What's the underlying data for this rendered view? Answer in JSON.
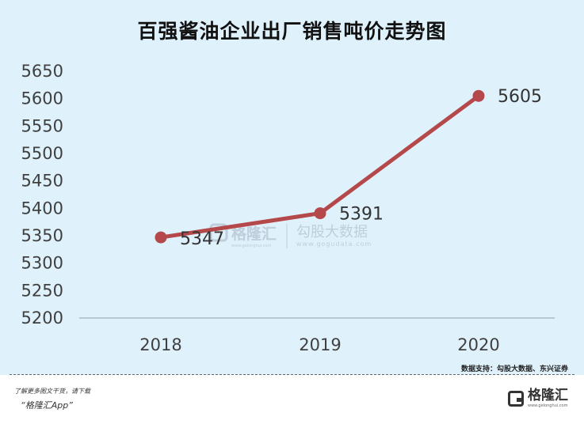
{
  "chart_data": {
    "type": "line",
    "title": "百强酱油企业出厂销售吨价走势图",
    "categories": [
      "2018",
      "2019",
      "2020"
    ],
    "series": [
      {
        "values": [
          5347,
          5391,
          5605
        ],
        "color": "#b5484a"
      }
    ],
    "data_labels": [
      "5347",
      "5391",
      "5605"
    ],
    "yticks": [
      "5650",
      "5600",
      "5550",
      "5500",
      "5450",
      "5400",
      "5350",
      "5300",
      "5250",
      "5200"
    ],
    "ylim": [
      5200,
      5650
    ],
    "grid": false,
    "legend": "none"
  },
  "watermark": {
    "brand": "格隆汇",
    "sub": "www.gelonghui.com",
    "name": "勾股大数据",
    "url": "www.gogudata.com"
  },
  "source_text": "数据支持：勾股大数据、东兴证券",
  "footer": {
    "line1": "了解更多图文干货，请下载",
    "line2": "“格隆汇App”",
    "logo_text": "格隆汇",
    "logo_url": "www.gelonghui.com"
  }
}
